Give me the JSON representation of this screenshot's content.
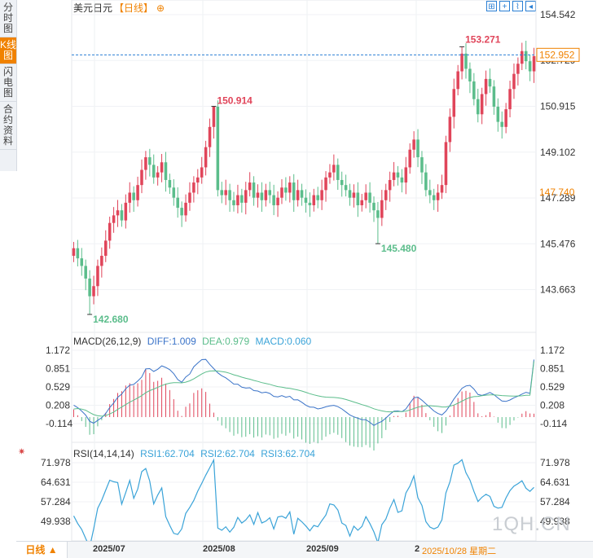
{
  "sidebar": {
    "tabs": [
      {
        "label": "分时图",
        "active": false
      },
      {
        "label": "K线图",
        "active": true
      },
      {
        "label": "闪电图",
        "active": false
      },
      {
        "label": "合约资料",
        "active": false
      }
    ]
  },
  "header": {
    "symbol": "美元日元",
    "period": "【日线】",
    "add_icon": "⊕"
  },
  "toolbar": {
    "icons": [
      "grid-icon",
      "zoom-in-icon",
      "chart-line-icon",
      "expand-icon"
    ]
  },
  "price_panel": {
    "y_ticks": [
      "154.542",
      "152.729",
      "150.915",
      "149.102",
      "147.289",
      "145.476",
      "143.663"
    ],
    "current_price": "152.952",
    "cursor_price": "147.740",
    "marks": {
      "high": "153.271",
      "peak": "150.914",
      "low": "142.680",
      "dip": "145.480"
    },
    "up_color": "#e0455a",
    "down_color": "#5bbd8b",
    "highlight_color": "#f08200"
  },
  "macd_panel": {
    "legend": {
      "name": "MACD(26,12,9)",
      "diff": "DIFF:1.009",
      "dea": "DEA:0.979",
      "macd": "MACD:0.060"
    },
    "y_ticks": [
      "1.172",
      "0.851",
      "0.529",
      "0.208",
      "-0.114"
    ]
  },
  "rsi_panel": {
    "legend": {
      "name": "RSI(14,14,14)",
      "rsi1": "RSI1:62.704",
      "rsi2": "RSI2:62.704",
      "rsi3": "RSI3:62.704"
    },
    "y_ticks": [
      "71.978",
      "64.631",
      "57.284",
      "49.938"
    ]
  },
  "bottom": {
    "period_button": "日线 ▲",
    "dates": [
      "2025/07",
      "2025/08",
      "2025/09",
      "2"
    ],
    "cursor_date": "2025/10/28 星期二"
  },
  "watermark": "1QH.CN",
  "chart_data": [
    {
      "type": "candlestick",
      "title": "美元日元【日线】",
      "ylim": [
        142.68,
        154.542
      ],
      "y_ticks": [
        154.542,
        152.729,
        150.915,
        149.102,
        147.289,
        145.476,
        143.663
      ],
      "x_ticks": [
        "2025/07",
        "2025/08",
        "2025/09"
      ],
      "last_price": 152.952,
      "annotations": {
        "max": 153.271,
        "local_max": 150.914,
        "min": 142.68,
        "local_min": 145.48
      },
      "close": [
        145.3,
        144.9,
        144.6,
        144.1,
        143.4,
        143.8,
        144.6,
        145.0,
        145.6,
        146.3,
        146.6,
        146.8,
        146.4,
        147.1,
        147.5,
        147.2,
        147.8,
        148.4,
        148.9,
        148.6,
        148.1,
        148.3,
        148.7,
        148.0,
        147.7,
        147.3,
        146.9,
        146.6,
        147.1,
        147.5,
        147.9,
        148.1,
        148.5,
        149.3,
        150.1,
        150.9,
        147.6,
        147.4,
        147.6,
        147.2,
        147.0,
        147.4,
        147.1,
        147.6,
        147.9,
        147.3,
        147.5,
        147.2,
        147.6,
        147.4,
        147.0,
        147.3,
        147.7,
        147.5,
        147.9,
        147.2,
        147.6,
        147.3,
        147.1,
        147.0,
        147.4,
        147.2,
        147.6,
        148.1,
        148.3,
        148.6,
        148.0,
        147.8,
        147.6,
        147.3,
        147.5,
        147.0,
        147.2,
        147.5,
        147.1,
        146.8,
        146.5,
        147.2,
        147.6,
        148.0,
        148.3,
        148.1,
        147.9,
        148.5,
        149.2,
        149.6,
        148.9,
        148.3,
        147.6,
        147.4,
        147.2,
        147.5,
        147.8,
        149.5,
        150.5,
        151.6,
        152.3,
        153.0,
        152.4,
        151.9,
        151.2,
        150.6,
        151.4,
        152.0,
        151.7,
        150.9,
        150.3,
        150.1,
        150.8,
        151.6,
        152.2,
        152.6,
        153.1,
        152.7,
        152.3,
        152.9
      ],
      "ylabel": "",
      "xlabel": ""
    },
    {
      "type": "line",
      "title": "MACD(26,12,9)",
      "series": [
        {
          "name": "DIFF",
          "values": [
            0.209,
            0.166,
            0.106,
            0.034,
            -0.074,
            -0.107,
            -0.058,
            -0.011,
            0.064,
            0.168,
            0.248,
            0.347,
            0.403,
            0.496,
            0.559,
            0.574,
            0.633,
            0.703,
            0.845,
            0.851,
            0.801,
            0.839,
            0.899,
            0.871,
            0.832,
            0.762,
            0.659,
            0.611,
            0.704,
            0.756,
            0.883,
            0.949,
            1.008,
            1.012,
            0.925,
            0.851,
            0.776,
            0.725,
            0.689,
            0.636,
            0.579,
            0.577,
            0.525,
            0.509,
            0.515,
            0.464,
            0.458,
            0.426,
            0.438,
            0.415,
            0.363,
            0.354,
            0.378,
            0.349,
            0.365,
            0.302,
            0.303,
            0.261,
            0.209,
            0.176,
            0.173,
            0.143,
            0.157,
            0.18,
            0.196,
            0.206,
            0.183,
            0.143,
            0.09,
            0.038,
            0.005,
            -0.02,
            -0.044,
            -0.046,
            -0.092,
            -0.147,
            -0.105,
            -0.076,
            -0.017,
            0.049,
            0.104,
            0.108,
            0.095,
            0.143,
            0.245,
            0.337,
            0.35,
            0.296,
            0.232,
            0.172,
            0.108,
            0.063,
            0.038,
            0.103,
            0.205,
            0.317,
            0.41,
            0.504,
            0.546,
            0.558,
            0.492,
            0.396,
            0.381,
            0.402,
            0.432,
            0.393,
            0.336,
            0.282,
            0.275,
            0.301,
            0.339,
            0.367,
            0.403,
            0.434,
            0.416,
            1.009
          ]
        },
        {
          "name": "DEA",
          "values": [
            0.142,
            0.15,
            0.141,
            0.12,
            0.081,
            0.043,
            0.023,
            0.016,
            0.026,
            0.054,
            0.089,
            0.135,
            0.176,
            0.219,
            0.262,
            0.298,
            0.336,
            0.376,
            0.428,
            0.465,
            0.492,
            0.521,
            0.554,
            0.577,
            0.595,
            0.605,
            0.603,
            0.601,
            0.613,
            0.636,
            0.671,
            0.714,
            0.756,
            0.791,
            0.807,
            0.812,
            0.808,
            0.799,
            0.787,
            0.767,
            0.742,
            0.724,
            0.701,
            0.681,
            0.665,
            0.644,
            0.626,
            0.605,
            0.591,
            0.575,
            0.553,
            0.535,
            0.525,
            0.512,
            0.504,
            0.49,
            0.475,
            0.457,
            0.434,
            0.411,
            0.391,
            0.373,
            0.359,
            0.351,
            0.347,
            0.344,
            0.338,
            0.327,
            0.309,
            0.287,
            0.264,
            0.243,
            0.219,
            0.199,
            0.175,
            0.146,
            0.126,
            0.109,
            0.096,
            0.092,
            0.095,
            0.097,
            0.097,
            0.104,
            0.124,
            0.15,
            0.174,
            0.188,
            0.197,
            0.2,
            0.193,
            0.187,
            0.178,
            0.177,
            0.192,
            0.212,
            0.243,
            0.279,
            0.316,
            0.343,
            0.359,
            0.363,
            0.374,
            0.385,
            0.389,
            0.389,
            0.385,
            0.378,
            0.373,
            0.37,
            0.369,
            0.371,
            0.373,
            0.382,
            0.384,
            0.979
          ]
        }
      ],
      "histogram_name": "MACD",
      "last_macd": 0.06,
      "y_ticks": [
        1.172,
        0.851,
        0.529,
        0.208,
        -0.114
      ],
      "ylim": [
        -0.28,
        1.3
      ]
    },
    {
      "type": "line",
      "title": "RSI(14,14,14)",
      "series": [
        {
          "name": "RSI1",
          "values": [
            52.0,
            49.1,
            46.9,
            43.5,
            40.2,
            47.1,
            54.8,
            57.9,
            61.7,
            65.4,
            64.8,
            64.5,
            56.4,
            60.7,
            65.3,
            58.6,
            62.1,
            68.6,
            69.8,
            65.1,
            56.5,
            59.8,
            62.5,
            51.7,
            48.4,
            45.4,
            45.0,
            47.1,
            52.9,
            55.2,
            57.8,
            61.3,
            64.2,
            67.3,
            70.1,
            73.0,
            47.4,
            46.6,
            47.9,
            45.9,
            47.7,
            51.4,
            49.3,
            50.5,
            52.4,
            48.8,
            53.2,
            49.3,
            50.0,
            51.3,
            47.1,
            51.6,
            51.9,
            51.1,
            53.5,
            45.1,
            51.1,
            49.8,
            48.2,
            46.4,
            48.4,
            47.9,
            50.2,
            52.3,
            56.5,
            56.1,
            54.2,
            49.3,
            48.4,
            44.4,
            48.1,
            46.6,
            48.0,
            51.7,
            49.1,
            46.0,
            41.9,
            48.7,
            50.8,
            54.9,
            58.1,
            53.3,
            53.9,
            60.6,
            63.2,
            67.0,
            58.8,
            55.9,
            49.8,
            47.8,
            47.1,
            47.8,
            50.5,
            60.6,
            64.8,
            71.1,
            71.8,
            73.1,
            68.2,
            65.5,
            61.2,
            57.4,
            59.0,
            60.1,
            59.3,
            55.6,
            54.9,
            55.2,
            58.7,
            61.5,
            63.2,
            64.1,
            65.2,
            62.4,
            61.2,
            62.7
          ]
        }
      ],
      "legend_values": {
        "RSI1": 62.704,
        "RSI2": 62.704,
        "RSI3": 62.704
      },
      "y_ticks": [
        71.978,
        64.631,
        57.284,
        49.938
      ],
      "ylim": [
        42,
        75
      ]
    }
  ]
}
